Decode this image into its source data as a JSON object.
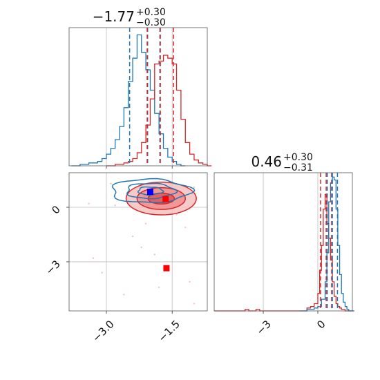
{
  "colors": {
    "blue": "#1f77b4",
    "red": "#d62728",
    "marker_blue": "#0000ff",
    "marker_red": "#ff0000",
    "grid": "#bbbbbb"
  },
  "chart_data": [
    {
      "type": "step-histogram",
      "panel": "x-marginal",
      "title": {
        "main": "−1.77",
        "sup": "+0.30",
        "sub": "−0.30"
      },
      "xlim": [
        -3.85,
        -0.7
      ],
      "grid": true,
      "series": [
        {
          "color": "blue",
          "x": [
            -3.8,
            -3.7,
            -3.6,
            -3.5,
            -3.4,
            -3.3,
            -3.2,
            -3.1,
            -3.0,
            -2.9,
            -2.8,
            -2.7,
            -2.6,
            -2.5,
            -2.4,
            -2.3,
            -2.2,
            -2.1,
            -2.0,
            -1.9,
            -1.8,
            -1.7,
            -1.6,
            -1.5,
            -1.4,
            -1.3
          ],
          "values": [
            0,
            0,
            0.01,
            0.01,
            0.02,
            0.02,
            0.03,
            0.05,
            0.08,
            0.12,
            0.18,
            0.27,
            0.4,
            0.58,
            0.74,
            0.9,
            0.78,
            0.66,
            0.52,
            0.36,
            0.22,
            0.12,
            0.06,
            0.03,
            0.01,
            0
          ],
          "quantiles": [
            -2.47,
            -2.06,
            -1.78
          ]
        },
        {
          "color": "red",
          "x": [
            -3.0,
            -2.9,
            -2.8,
            -2.7,
            -2.6,
            -2.5,
            -2.4,
            -2.3,
            -2.2,
            -2.1,
            -2.0,
            -1.9,
            -1.8,
            -1.7,
            -1.6,
            -1.5,
            -1.4,
            -1.3,
            -1.2,
            -1.1,
            -1.0,
            -0.9,
            -0.8,
            -0.7
          ],
          "values": [
            0,
            0,
            0.01,
            0.01,
            0.02,
            0.03,
            0.05,
            0.09,
            0.16,
            0.28,
            0.46,
            0.7,
            0.72,
            0.76,
            0.74,
            0.7,
            0.52,
            0.32,
            0.16,
            0.08,
            0.04,
            0.02,
            0.01,
            0
          ],
          "quantiles": [
            -2.07,
            -1.77,
            -1.47
          ]
        }
      ]
    },
    {
      "type": "contour-2d",
      "panel": "joint",
      "xlim": [
        -3.85,
        -0.7
      ],
      "ylim": [
        -5.7,
        1.9
      ],
      "xticks": [
        -3.0,
        -1.5
      ],
      "xtick_labels": [
        "−3.0",
        "−1.5"
      ],
      "yticks": [
        0,
        -3
      ],
      "ytick_labels": [
        "0",
        "−3"
      ],
      "grid": true,
      "series": [
        {
          "color": "blue",
          "center": [
            -2.0,
            0.9
          ],
          "radii_x": [
            0.28,
            0.55,
            0.9
          ],
          "radii_y": [
            0.22,
            0.42,
            0.65
          ]
        },
        {
          "color": "red",
          "center": [
            -1.75,
            0.48
          ],
          "radii_x": [
            0.3,
            0.55,
            0.8
          ],
          "radii_y": [
            0.3,
            0.6,
            0.9
          ]
        }
      ],
      "markers": [
        {
          "color": "marker_blue",
          "x": -2.0,
          "y": 0.85
        },
        {
          "color": "marker_red",
          "x": -1.65,
          "y": 0.45
        },
        {
          "color": "marker_red",
          "x": -1.63,
          "y": -3.35
        }
      ]
    },
    {
      "type": "step-histogram",
      "panel": "y-marginal",
      "title": {
        "main": "0.46",
        "sup": "+0.30",
        "sub": "−0.31"
      },
      "xlim": [
        -5.7,
        1.9
      ],
      "xticks": [
        -3,
        0
      ],
      "xtick_labels": [
        "−3",
        "0"
      ],
      "grid": true,
      "series": [
        {
          "color": "red",
          "x": [
            -5.7,
            -4.0,
            -3.8,
            -3.4,
            -3.2,
            -0.6,
            -0.4,
            -0.2,
            0.0,
            0.1,
            0.2,
            0.3,
            0.4,
            0.5,
            0.6,
            0.7,
            0.8,
            0.9,
            1.0,
            1.1,
            1.2,
            1.3,
            1.5,
            1.9
          ],
          "values": [
            0,
            0.01,
            0,
            0.01,
            0,
            0.02,
            0.03,
            0.05,
            0.12,
            0.28,
            0.45,
            0.7,
            0.8,
            0.6,
            0.5,
            0.35,
            0.2,
            0.1,
            0.05,
            0.03,
            0.02,
            0.01,
            0,
            0
          ],
          "quantiles": [
            0.15,
            0.46,
            0.76
          ]
        },
        {
          "color": "blue",
          "x": [
            -1.0,
            -0.6,
            -0.2,
            0.0,
            0.2,
            0.4,
            0.5,
            0.6,
            0.7,
            0.8,
            0.9,
            1.0,
            1.1,
            1.2,
            1.3,
            1.4,
            1.5,
            1.6,
            1.7,
            1.9
          ],
          "values": [
            0,
            0.01,
            0.02,
            0.03,
            0.08,
            0.2,
            0.4,
            0.75,
            0.88,
            0.92,
            0.9,
            0.7,
            0.45,
            0.25,
            0.12,
            0.06,
            0.03,
            0.01,
            0,
            0
          ],
          "quantiles": [
            0.52,
            0.8,
            1.08
          ]
        }
      ]
    }
  ]
}
